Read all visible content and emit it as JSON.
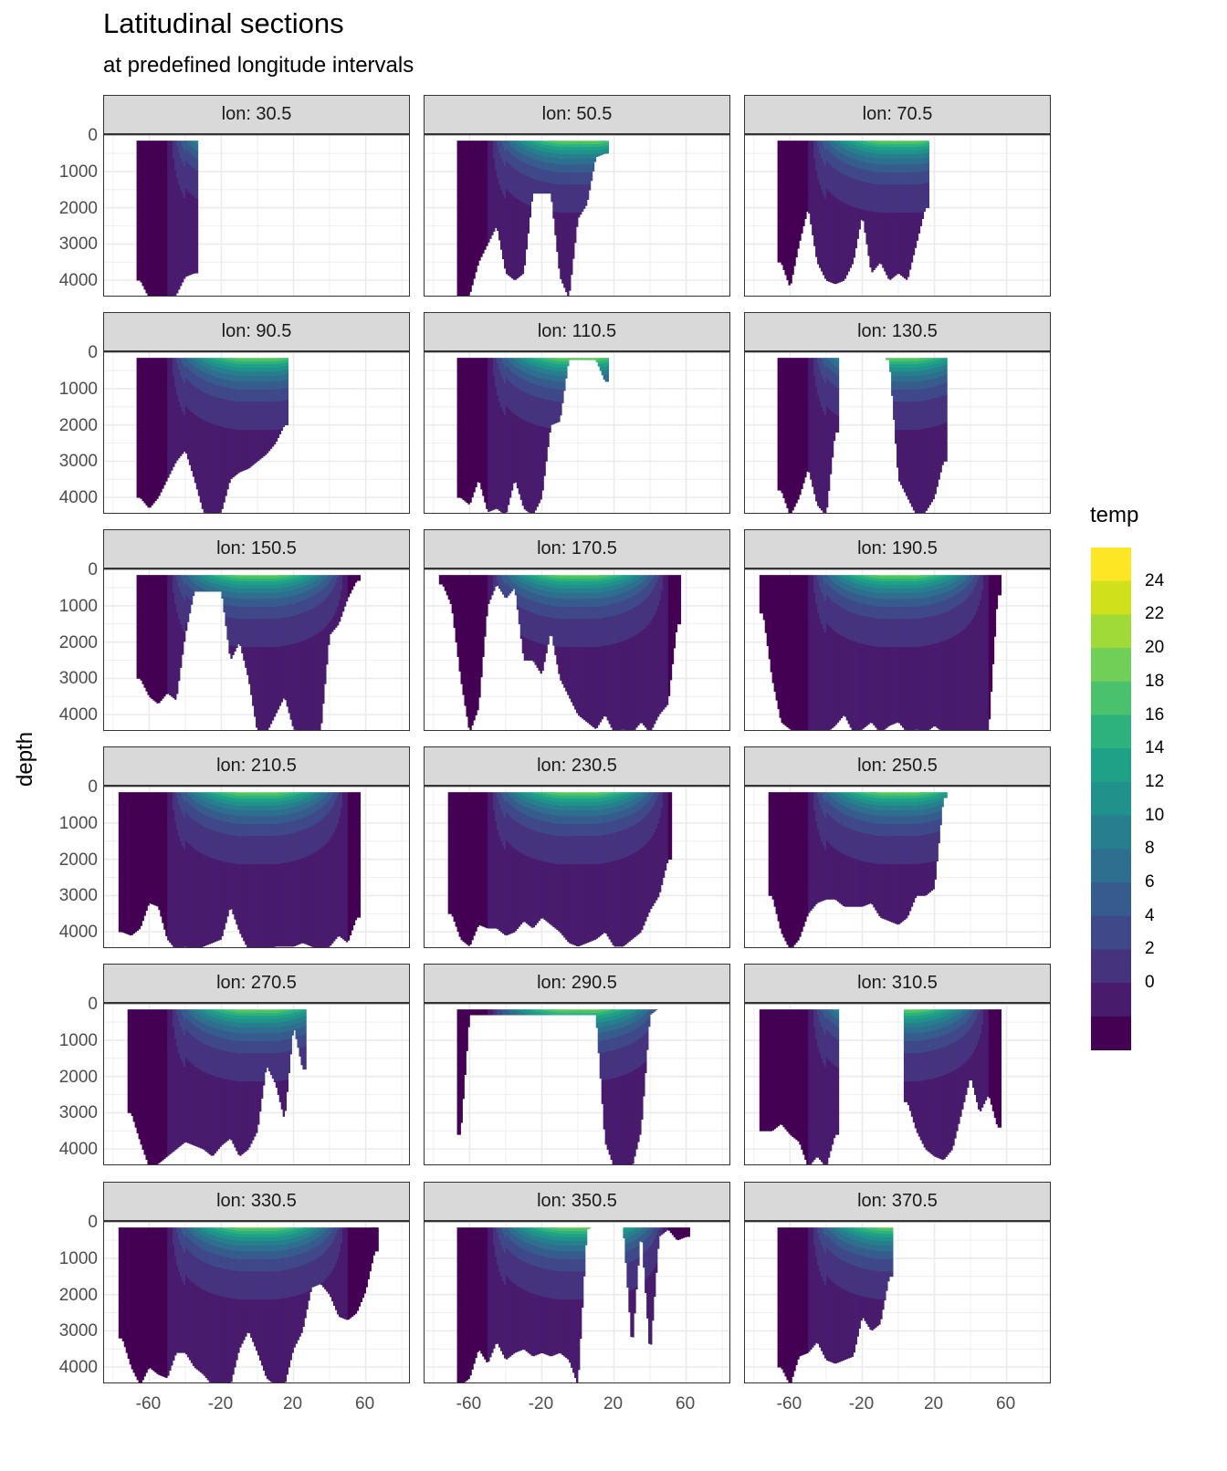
{
  "chart_data": {
    "type": "heatmap",
    "subtype": "filled-contour faceted",
    "title": "Latitudinal sections",
    "subtitle": "at predefined longitude intervals",
    "xlabel": "",
    "ylabel": "depth",
    "xlim": [
      -85,
      85
    ],
    "ylim": [
      4450,
      -30
    ],
    "x_ticks": [
      "-60",
      "-20",
      "20",
      "60"
    ],
    "x_tick_values": [
      -60,
      -20,
      20,
      60
    ],
    "y_ticks": [
      "0",
      "1000",
      "2000",
      "3000",
      "4000"
    ],
    "y_tick_values": [
      0,
      1000,
      2000,
      3000,
      4000
    ],
    "grid": true,
    "legend": {
      "title": "temp",
      "position": "right",
      "breaks": [
        -2,
        0,
        2,
        4,
        6,
        8,
        10,
        12,
        14,
        16,
        18,
        20,
        22,
        24,
        26
      ],
      "labels": [
        "0",
        "2",
        "4",
        "6",
        "8",
        "10",
        "12",
        "14",
        "16",
        "18",
        "20",
        "22",
        "24"
      ],
      "colors": [
        "#440154",
        "#481b6d",
        "#46337e",
        "#3f4889",
        "#365c8d",
        "#2e6e8e",
        "#277f8e",
        "#21918c",
        "#1fa187",
        "#2db27d",
        "#4ac16d",
        "#71cf57",
        "#a0da39",
        "#d0e11c",
        "#fde725"
      ]
    },
    "lat_samples": [
      -80,
      -75,
      -70,
      -65,
      -60,
      -55,
      -50,
      -45,
      -40,
      -35,
      -30,
      -25,
      -20,
      -15,
      -10,
      -5,
      0,
      5,
      10,
      15,
      20,
      25,
      30,
      35,
      40,
      45,
      50,
      55,
      60,
      65,
      70,
      75,
      80
    ],
    "panels": [
      {
        "label": "lon: 30.5",
        "bottom_depth": [
          0,
          0,
          0,
          4000,
          4500,
          4500,
          4500,
          4400,
          3900,
          3800,
          0,
          0,
          0,
          0,
          0,
          0,
          0,
          0,
          0,
          0,
          0,
          0,
          0,
          0,
          0,
          0,
          0,
          0,
          0,
          0,
          0,
          0,
          0
        ]
      },
      {
        "label": "lon: 50.5",
        "bottom_depth": [
          0,
          0,
          0,
          4500,
          4400,
          3500,
          3000,
          2500,
          3800,
          4000,
          3800,
          1600,
          1600,
          1600,
          3900,
          4500,
          2300,
          1900,
          600,
          500,
          0,
          0,
          0,
          0,
          0,
          0,
          0,
          0,
          0,
          0,
          0,
          0,
          0
        ]
      },
      {
        "label": "lon: 70.5",
        "bottom_depth": [
          0,
          0,
          0,
          3500,
          4200,
          3000,
          2000,
          3500,
          4000,
          4100,
          4000,
          3500,
          2200,
          3800,
          3500,
          4000,
          3800,
          4000,
          3000,
          2000,
          0,
          0,
          0,
          0,
          0,
          0,
          0,
          0,
          0,
          0,
          0,
          0,
          0
        ]
      },
      {
        "label": "lon: 90.5",
        "bottom_depth": [
          0,
          0,
          0,
          4000,
          4300,
          4000,
          3500,
          3000,
          2700,
          3500,
          4400,
          4500,
          4400,
          3500,
          3300,
          3200,
          3000,
          2800,
          2500,
          2000,
          0,
          0,
          0,
          0,
          0,
          0,
          0,
          0,
          0,
          0,
          0,
          0,
          0
        ]
      },
      {
        "label": "lon: 110.5",
        "bottom_depth": [
          0,
          0,
          0,
          4000,
          4200,
          3500,
          4400,
          4300,
          4500,
          3500,
          4300,
          4500,
          4000,
          2000,
          1900,
          200,
          200,
          200,
          200,
          800,
          0,
          0,
          0,
          0,
          0,
          0,
          0,
          0,
          0,
          0,
          0,
          0,
          0
        ]
      },
      {
        "label": "lon: 130.5",
        "bottom_depth": [
          0,
          0,
          0,
          3800,
          4500,
          4000,
          3200,
          4200,
          4500,
          2200,
          0,
          0,
          0,
          0,
          0,
          200,
          3500,
          4000,
          4500,
          4400,
          4000,
          3000,
          0,
          0,
          0,
          0,
          0,
          0,
          0,
          0,
          0,
          0,
          0
        ]
      },
      {
        "label": "lon: 150.5",
        "bottom_depth": [
          0,
          0,
          0,
          3000,
          3500,
          3700,
          3400,
          3600,
          1800,
          600,
          600,
          600,
          600,
          2500,
          2000,
          3000,
          4500,
          4500,
          4000,
          3500,
          4400,
          4500,
          4500,
          4500,
          1800,
          1500,
          800,
          300,
          0,
          0,
          0,
          0,
          0
        ]
      },
      {
        "label": "lon: 170.5",
        "bottom_depth": [
          0,
          400,
          1000,
          3000,
          4500,
          3800,
          1000,
          400,
          800,
          500,
          2500,
          2500,
          2900,
          1700,
          3000,
          3500,
          4000,
          4200,
          4400,
          4000,
          4500,
          4400,
          4500,
          4200,
          4500,
          4000,
          3700,
          1500,
          0,
          0,
          0,
          0,
          0
        ]
      },
      {
        "label": "lon: 190.5",
        "bottom_depth": [
          0,
          1200,
          3000,
          4200,
          4400,
          4500,
          4500,
          4500,
          4500,
          4300,
          4000,
          4500,
          4400,
          4200,
          4500,
          4300,
          4200,
          4500,
          4400,
          4500,
          4300,
          4500,
          4500,
          4500,
          4500,
          4500,
          4500,
          700,
          0,
          0,
          0,
          0,
          0
        ]
      },
      {
        "label": "lon: 210.5",
        "bottom_depth": [
          0,
          4000,
          4100,
          3900,
          3200,
          3300,
          4200,
          4500,
          4400,
          4500,
          4400,
          4300,
          4200,
          3300,
          4000,
          4500,
          4500,
          4500,
          4400,
          4400,
          4400,
          4300,
          4400,
          4500,
          4400,
          4100,
          4300,
          3600,
          0,
          0,
          0,
          0,
          0
        ]
      },
      {
        "label": "lon: 230.5",
        "bottom_depth": [
          0,
          0,
          3500,
          4200,
          4400,
          3800,
          3900,
          3900,
          4100,
          4000,
          3700,
          3900,
          3600,
          3800,
          4000,
          4300,
          4400,
          4300,
          4200,
          4000,
          4400,
          4400,
          4200,
          4000,
          3400,
          3000,
          2000,
          0,
          0,
          0,
          0,
          0,
          0
        ]
      },
      {
        "label": "lon: 250.5",
        "bottom_depth": [
          0,
          0,
          3000,
          4000,
          4500,
          4200,
          3500,
          3200,
          3100,
          3100,
          3300,
          3300,
          3300,
          3200,
          3600,
          3700,
          3800,
          3600,
          3000,
          3000,
          2800,
          300,
          0,
          0,
          0,
          0,
          0,
          0,
          0,
          0,
          0,
          0,
          0
        ]
      },
      {
        "label": "lon: 270.5",
        "bottom_depth": [
          0,
          0,
          3000,
          3800,
          4500,
          4400,
          4200,
          4000,
          3800,
          3900,
          4000,
          4200,
          3900,
          3700,
          4200,
          4000,
          3500,
          1700,
          2200,
          3200,
          600,
          1800,
          0,
          0,
          0,
          0,
          0,
          0,
          0,
          0,
          0,
          0,
          0
        ]
      },
      {
        "label": "lon: 290.5",
        "bottom_depth": [
          0,
          0,
          0,
          3600,
          300,
          300,
          300,
          300,
          300,
          300,
          300,
          300,
          300,
          300,
          300,
          300,
          300,
          300,
          300,
          3800,
          4500,
          4500,
          4500,
          3500,
          300,
          100,
          100,
          100,
          100,
          0,
          0,
          0,
          0
        ]
      },
      {
        "label": "lon: 310.5",
        "bottom_depth": [
          0,
          3500,
          3500,
          3300,
          3600,
          3800,
          4500,
          4200,
          4500,
          3600,
          0,
          0,
          0,
          0,
          0,
          0,
          0,
          2700,
          3500,
          4000,
          4200,
          4300,
          4000,
          3000,
          2000,
          3000,
          2500,
          3400,
          0,
          0,
          0,
          0,
          0
        ]
      },
      {
        "label": "lon: 330.5",
        "bottom_depth": [
          0,
          3200,
          4000,
          4500,
          4000,
          4200,
          4300,
          3600,
          3600,
          4000,
          4200,
          4500,
          4500,
          4500,
          3500,
          3000,
          3600,
          4300,
          4500,
          4500,
          3500,
          3000,
          1800,
          1700,
          2000,
          2600,
          2700,
          2500,
          1900,
          800,
          0,
          0,
          0
        ]
      },
      {
        "label": "lon: 350.5",
        "bottom_depth": [
          0,
          0,
          0,
          4500,
          4300,
          3500,
          3900,
          3300,
          3800,
          3600,
          3500,
          3700,
          3600,
          3700,
          3600,
          3800,
          4500,
          200,
          100,
          100,
          100,
          100,
          3500,
          200,
          3700,
          400,
          200,
          500,
          400,
          0,
          0,
          0,
          0
        ]
      },
      {
        "label": "lon: 370.5",
        "bottom_depth": [
          0,
          0,
          0,
          4000,
          4500,
          3700,
          3600,
          3300,
          3800,
          3900,
          3800,
          3700,
          2600,
          3000,
          2800,
          1500,
          0,
          0,
          0,
          0,
          0,
          0,
          0,
          0,
          0,
          0,
          0,
          0,
          0,
          0,
          0,
          0,
          0
        ]
      }
    ]
  }
}
